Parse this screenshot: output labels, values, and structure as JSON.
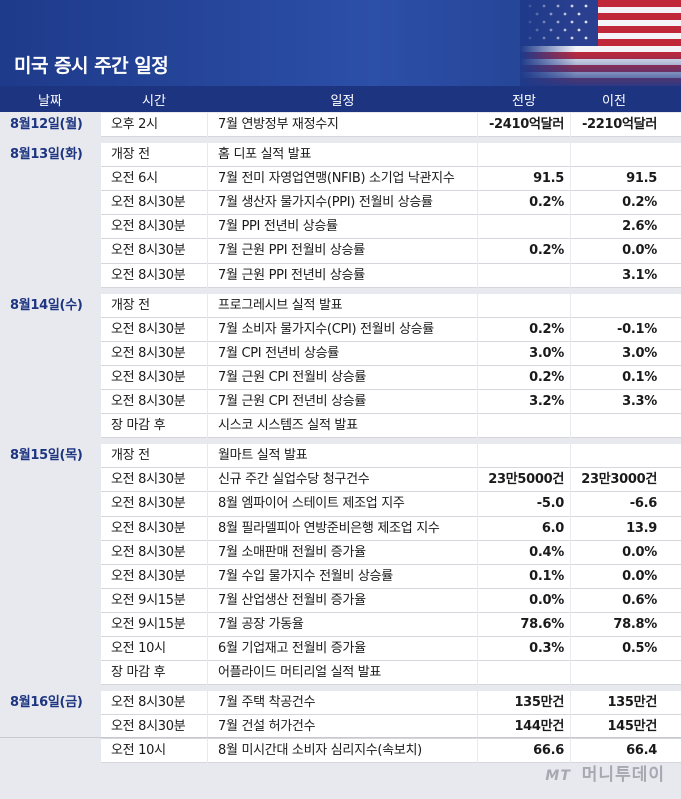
{
  "title": "미국 증시 주간 일정",
  "columns": {
    "date": "날짜",
    "time": "시간",
    "event": "일정",
    "forecast": "전망",
    "previous": "이전"
  },
  "colors": {
    "header_bg": "#1e3a8a",
    "column_bar": "#1d3580",
    "date_text": "#1d3580"
  },
  "groups": [
    {
      "date": "8월12일(월)",
      "rows": [
        {
          "time": "오후 2시",
          "event": "7월 연방정부 재정수지",
          "forecast": "-2410억달러",
          "previous": "-2210억달러"
        }
      ]
    },
    {
      "date": "8월13일(화)",
      "rows": [
        {
          "time": "개장 전",
          "event": "홈 디포 실적 발표",
          "forecast": "",
          "previous": ""
        },
        {
          "time": "오전 6시",
          "event": "7월 전미 자영업연맹(NFIB) 소기업 낙관지수",
          "forecast": "91.5",
          "previous": "91.5"
        },
        {
          "time": "오전 8시30분",
          "event": "7월 생산자 물가지수(PPI) 전월비 상승률",
          "forecast": "0.2%",
          "previous": "0.2%"
        },
        {
          "time": "오전 8시30분",
          "event": "7월 PPI 전년비 상승률",
          "forecast": "",
          "previous": "2.6%"
        },
        {
          "time": "오전 8시30분",
          "event": "7월 근원 PPI 전월비 상승률",
          "forecast": "0.2%",
          "previous": "0.0%"
        },
        {
          "time": "오전 8시30분",
          "event": "7월 근원 PPI 전년비 상승률",
          "forecast": "",
          "previous": "3.1%"
        }
      ]
    },
    {
      "date": "8월14일(수)",
      "rows": [
        {
          "time": "개장 전",
          "event": "프로그레시브 실적 발표",
          "forecast": "",
          "previous": ""
        },
        {
          "time": "오전 8시30분",
          "event": "7월 소비자 물가지수(CPI) 전월비 상승률",
          "forecast": "0.2%",
          "previous": "-0.1%"
        },
        {
          "time": "오전 8시30분",
          "event": "7월 CPI 전년비 상승률",
          "forecast": "3.0%",
          "previous": "3.0%"
        },
        {
          "time": "오전 8시30분",
          "event": "7월 근원 CPI 전월비 상승률",
          "forecast": "0.2%",
          "previous": "0.1%"
        },
        {
          "time": "오전 8시30분",
          "event": "7월 근원 CPI 전년비 상승률",
          "forecast": "3.2%",
          "previous": "3.3%"
        },
        {
          "time": "장 마감 후",
          "event": "시스코 시스템즈 실적 발표",
          "forecast": "",
          "previous": ""
        }
      ]
    },
    {
      "date": "8월15일(목)",
      "rows": [
        {
          "time": "개장 전",
          "event": "월마트 실적 발표",
          "forecast": "",
          "previous": ""
        },
        {
          "time": "오전 8시30분",
          "event": "신규 주간 실업수당 청구건수",
          "forecast": "23만5000건",
          "previous": "23만3000건"
        },
        {
          "time": "오전 8시30분",
          "event": "8월 엠파이어 스테이트 제조업 지주",
          "forecast": "-5.0",
          "previous": "-6.6"
        },
        {
          "time": "오전 8시30분",
          "event": "8월 필라델피아 연방준비은행 제조업 지수",
          "forecast": "6.0",
          "previous": "13.9"
        },
        {
          "time": "오전 8시30분",
          "event": "7월 소매판매 전월비 증가율",
          "forecast": "0.4%",
          "previous": "0.0%"
        },
        {
          "time": "오전 8시30분",
          "event": "7월 수입 물가지수 전월비 상승률",
          "forecast": "0.1%",
          "previous": "0.0%"
        },
        {
          "time": "오전 9시15분",
          "event": "7월 산업생산 전월비 증가율",
          "forecast": "0.0%",
          "previous": "0.6%"
        },
        {
          "time": "오전 9시15분",
          "event": "7월 공장 가동율",
          "forecast": "78.6%",
          "previous": "78.8%"
        },
        {
          "time": "오전 10시",
          "event": "6월 기업재고 전월비 증가율",
          "forecast": "0.3%",
          "previous": "0.5%"
        },
        {
          "time": "장 마감 후",
          "event": "어플라이드 머티리얼 실적 발표",
          "forecast": "",
          "previous": ""
        }
      ]
    },
    {
      "date": "8월16일(금)",
      "rows": [
        {
          "time": "오전 8시30분",
          "event": "7월 주택 착공건수",
          "forecast": "135만건",
          "previous": "135만건"
        },
        {
          "time": "오전 8시30분",
          "event": "7월 건설 허가건수",
          "forecast": "144만건",
          "previous": "145만건"
        },
        {
          "time": "오전 10시",
          "event": "8월 미시간대 소비자 심리지수(속보치)",
          "forecast": "66.6",
          "previous": "66.4"
        }
      ]
    }
  ],
  "watermark": {
    "prefix": "MT",
    "name": "머니투데이"
  }
}
